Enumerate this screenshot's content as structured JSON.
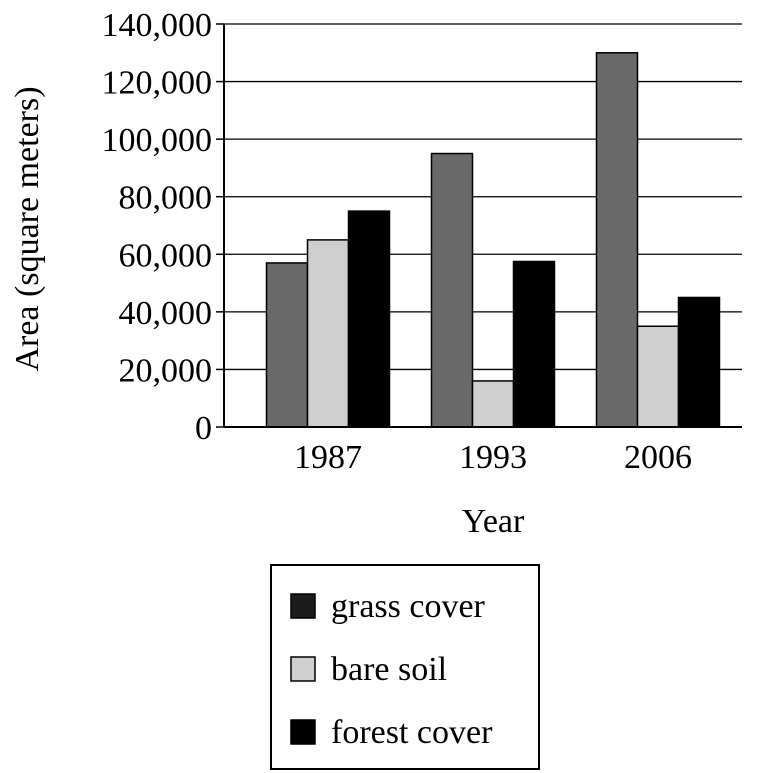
{
  "chart_data": {
    "type": "bar",
    "categories": [
      "1987",
      "1993",
      "2006"
    ],
    "series": [
      {
        "name": "grass cover",
        "values": [
          57000,
          95000,
          130000
        ],
        "color": "#6a6a6a",
        "legend_color": "#1c1c1c"
      },
      {
        "name": "bare soil",
        "values": [
          65000,
          16000,
          35000
        ],
        "color": "#cfcfcf",
        "legend_color": "#cfcfcf"
      },
      {
        "name": "forest cover",
        "values": [
          75000,
          57500,
          45000
        ],
        "color": "#000000",
        "legend_color": "#000000"
      }
    ],
    "title": "",
    "xlabel": "Year",
    "ylabel": "Area (square meters)",
    "ylim": [
      0,
      140000
    ],
    "yticks": [
      0,
      20000,
      40000,
      60000,
      80000,
      100000,
      120000,
      140000
    ],
    "ytick_labels": [
      "0",
      "20,000",
      "40,000",
      "60,000",
      "80,000",
      "100,000",
      "120,000",
      "140,000"
    ],
    "grid": true,
    "legend_position": "bottom"
  }
}
